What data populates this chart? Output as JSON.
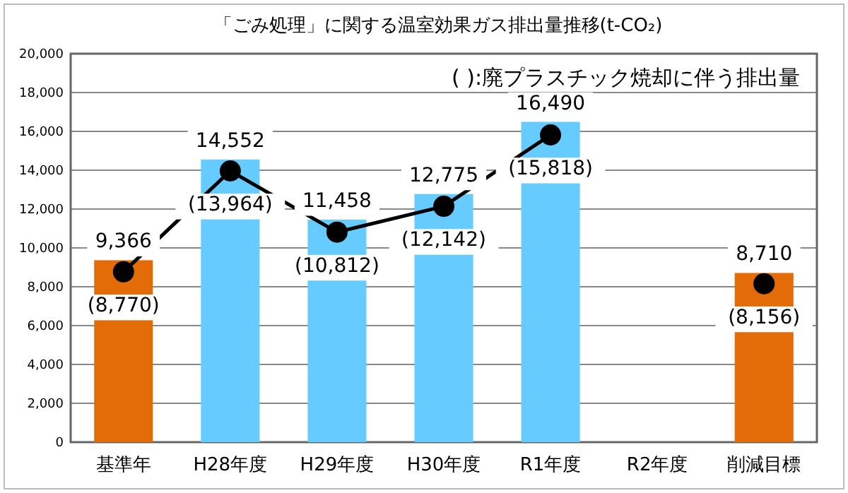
{
  "chart_data": {
    "type": "bar",
    "title": "「ごみ処理」に関する温室効果ガス排出量推移(t-CO₂)",
    "annotations": [
      "(  ):廃プラスチック焼却に伴う排出量"
    ],
    "categories": [
      "基準年",
      "H28年度",
      "H29年度",
      "H30年度",
      "R1年度",
      "R2年度",
      "削減目標"
    ],
    "series": [
      {
        "colors": [
          "#e36c09",
          "#66ccff",
          "#66ccff",
          "#66ccff",
          "#66ccff",
          null,
          "#e36c09"
        ],
        "values": [
          9366,
          14552,
          11458,
          12775,
          16490,
          null,
          8710
        ],
        "value_labels": [
          "9,366",
          "14,552",
          "11,458",
          "12,775",
          "16,490",
          null,
          "8,710"
        ]
      },
      {
        "type": "line",
        "color": "#000000",
        "marker": "circle",
        "values": [
          8770,
          13964,
          10812,
          12142,
          15818,
          null,
          8156
        ],
        "value_labels": [
          "(8,770)",
          "(13,964)",
          "(10,812)",
          "(12,142)",
          "(15,818)",
          null,
          "(8,156)"
        ]
      }
    ],
    "ylim": [
      0,
      20000
    ],
    "yticks": [
      {
        "value": 0,
        "label": "0"
      },
      {
        "value": 2000,
        "label": "2,000"
      },
      {
        "value": 4000,
        "label": "4,000"
      },
      {
        "value": 6000,
        "label": "6,000"
      },
      {
        "value": 8000,
        "label": "8,000"
      },
      {
        "value": 10000,
        "label": "10,000"
      },
      {
        "value": 12000,
        "label": "12,000"
      },
      {
        "value": 14000,
        "label": "14,000"
      },
      {
        "value": 16000,
        "label": "16,000"
      },
      {
        "value": 18000,
        "label": "18,000"
      },
      {
        "value": 20000,
        "label": "20,000"
      }
    ],
    "grid": "y"
  }
}
